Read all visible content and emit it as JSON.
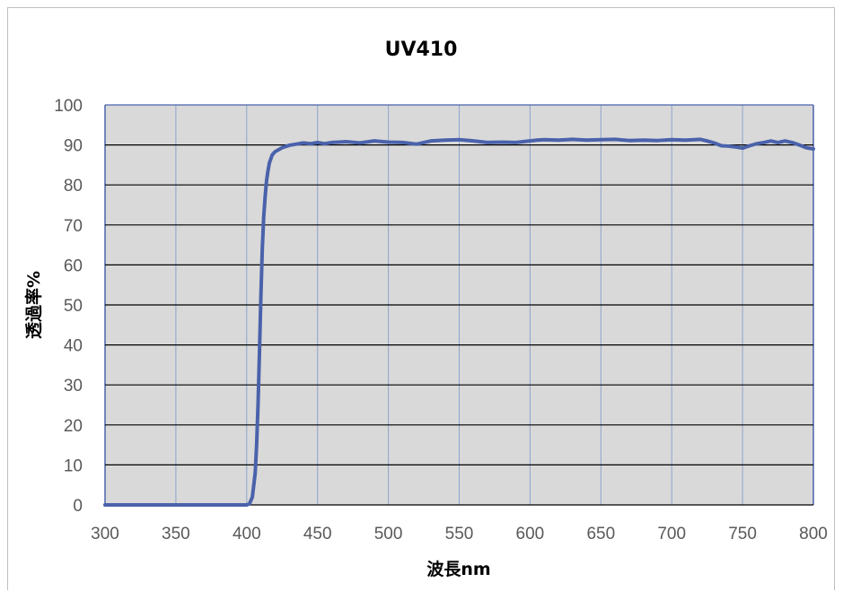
{
  "chart_data": {
    "type": "line",
    "title": "UV410",
    "xlabel": "波長nm",
    "ylabel": "透過率%",
    "xlim": [
      300,
      800
    ],
    "ylim": [
      0,
      100
    ],
    "xticks": [
      300,
      350,
      400,
      450,
      500,
      550,
      600,
      650,
      700,
      750,
      800
    ],
    "yticks": [
      0,
      10,
      20,
      30,
      40,
      50,
      60,
      70,
      80,
      90,
      100
    ],
    "grid": true,
    "legend": "none",
    "colors": {
      "line": "#4a62ab",
      "plot_background": "#d9d9d9",
      "grid_major": "#000000",
      "grid_vertical": "#8ea4cc"
    },
    "series": [
      {
        "x": [
          300,
          350,
          400,
          402,
          404,
          406,
          407,
          408,
          409,
          410,
          411,
          412,
          413,
          414,
          415,
          416,
          418,
          420,
          425,
          430,
          435,
          440,
          445,
          450,
          455,
          460,
          470,
          480,
          490,
          500,
          510,
          520,
          525,
          530,
          540,
          550,
          560,
          570,
          580,
          590,
          595,
          600,
          605,
          610,
          620,
          630,
          640,
          650,
          660,
          670,
          680,
          690,
          700,
          710,
          720,
          725,
          730,
          735,
          740,
          745,
          750,
          755,
          760,
          765,
          770,
          775,
          780,
          785,
          790,
          795,
          800
        ],
        "y": [
          0,
          0,
          0,
          0.3,
          2,
          8,
          15,
          25,
          38,
          52,
          64,
          72,
          77,
          81,
          83.5,
          85.5,
          87.5,
          88.3,
          89.3,
          89.9,
          90.2,
          90.5,
          90.3,
          90.6,
          90.3,
          90.6,
          90.8,
          90.5,
          91,
          90.7,
          90.6,
          90.2,
          90.6,
          91,
          91.2,
          91.3,
          91,
          90.6,
          90.7,
          90.6,
          90.8,
          91,
          91.2,
          91.3,
          91.2,
          91.4,
          91.2,
          91.3,
          91.4,
          91.1,
          91.2,
          91.1,
          91.3,
          91.2,
          91.4,
          91,
          90.5,
          89.8,
          89.7,
          89.5,
          89.2,
          89.8,
          90.3,
          90.6,
          91,
          90.6,
          91,
          90.6,
          90,
          89.3,
          89
        ]
      }
    ]
  }
}
